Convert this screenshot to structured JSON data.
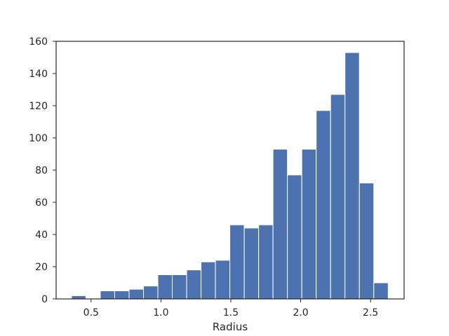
{
  "chart_data": {
    "type": "histogram",
    "title": "",
    "xlabel": "Radius",
    "ylabel": "",
    "xlim": [
      0.25,
      2.74
    ],
    "ylim": [
      0,
      160
    ],
    "xticks": [
      0.5,
      1.0,
      1.5,
      2.0,
      2.5
    ],
    "xtick_labels": [
      "0.5",
      "1.0",
      "1.5",
      "2.0",
      "2.5"
    ],
    "yticks": [
      0,
      20,
      40,
      60,
      80,
      100,
      120,
      140,
      160
    ],
    "ytick_labels": [
      "0",
      "20",
      "40",
      "60",
      "80",
      "100",
      "120",
      "140",
      "160"
    ],
    "grid": false,
    "bar_color": "#4c72b0",
    "bins": [
      {
        "x0": 0.36,
        "x1": 0.463,
        "count": 2
      },
      {
        "x0": 0.463,
        "x1": 0.566,
        "count": 0
      },
      {
        "x0": 0.566,
        "x1": 0.669,
        "count": 5
      },
      {
        "x0": 0.669,
        "x1": 0.772,
        "count": 5
      },
      {
        "x0": 0.772,
        "x1": 0.875,
        "count": 6
      },
      {
        "x0": 0.875,
        "x1": 0.978,
        "count": 8
      },
      {
        "x0": 0.978,
        "x1": 1.081,
        "count": 15
      },
      {
        "x0": 1.081,
        "x1": 1.184,
        "count": 15
      },
      {
        "x0": 1.184,
        "x1": 1.287,
        "count": 18
      },
      {
        "x0": 1.287,
        "x1": 1.39,
        "count": 23
      },
      {
        "x0": 1.39,
        "x1": 1.493,
        "count": 24
      },
      {
        "x0": 1.493,
        "x1": 1.596,
        "count": 46
      },
      {
        "x0": 1.596,
        "x1": 1.699,
        "count": 44
      },
      {
        "x0": 1.699,
        "x1": 1.802,
        "count": 46
      },
      {
        "x0": 1.802,
        "x1": 1.905,
        "count": 93
      },
      {
        "x0": 1.905,
        "x1": 2.008,
        "count": 77
      },
      {
        "x0": 2.008,
        "x1": 2.111,
        "count": 93
      },
      {
        "x0": 2.111,
        "x1": 2.214,
        "count": 117
      },
      {
        "x0": 2.214,
        "x1": 2.317,
        "count": 127
      },
      {
        "x0": 2.317,
        "x1": 2.42,
        "count": 153
      },
      {
        "x0": 2.42,
        "x1": 2.523,
        "count": 72
      },
      {
        "x0": 2.523,
        "x1": 2.626,
        "count": 10
      }
    ]
  }
}
